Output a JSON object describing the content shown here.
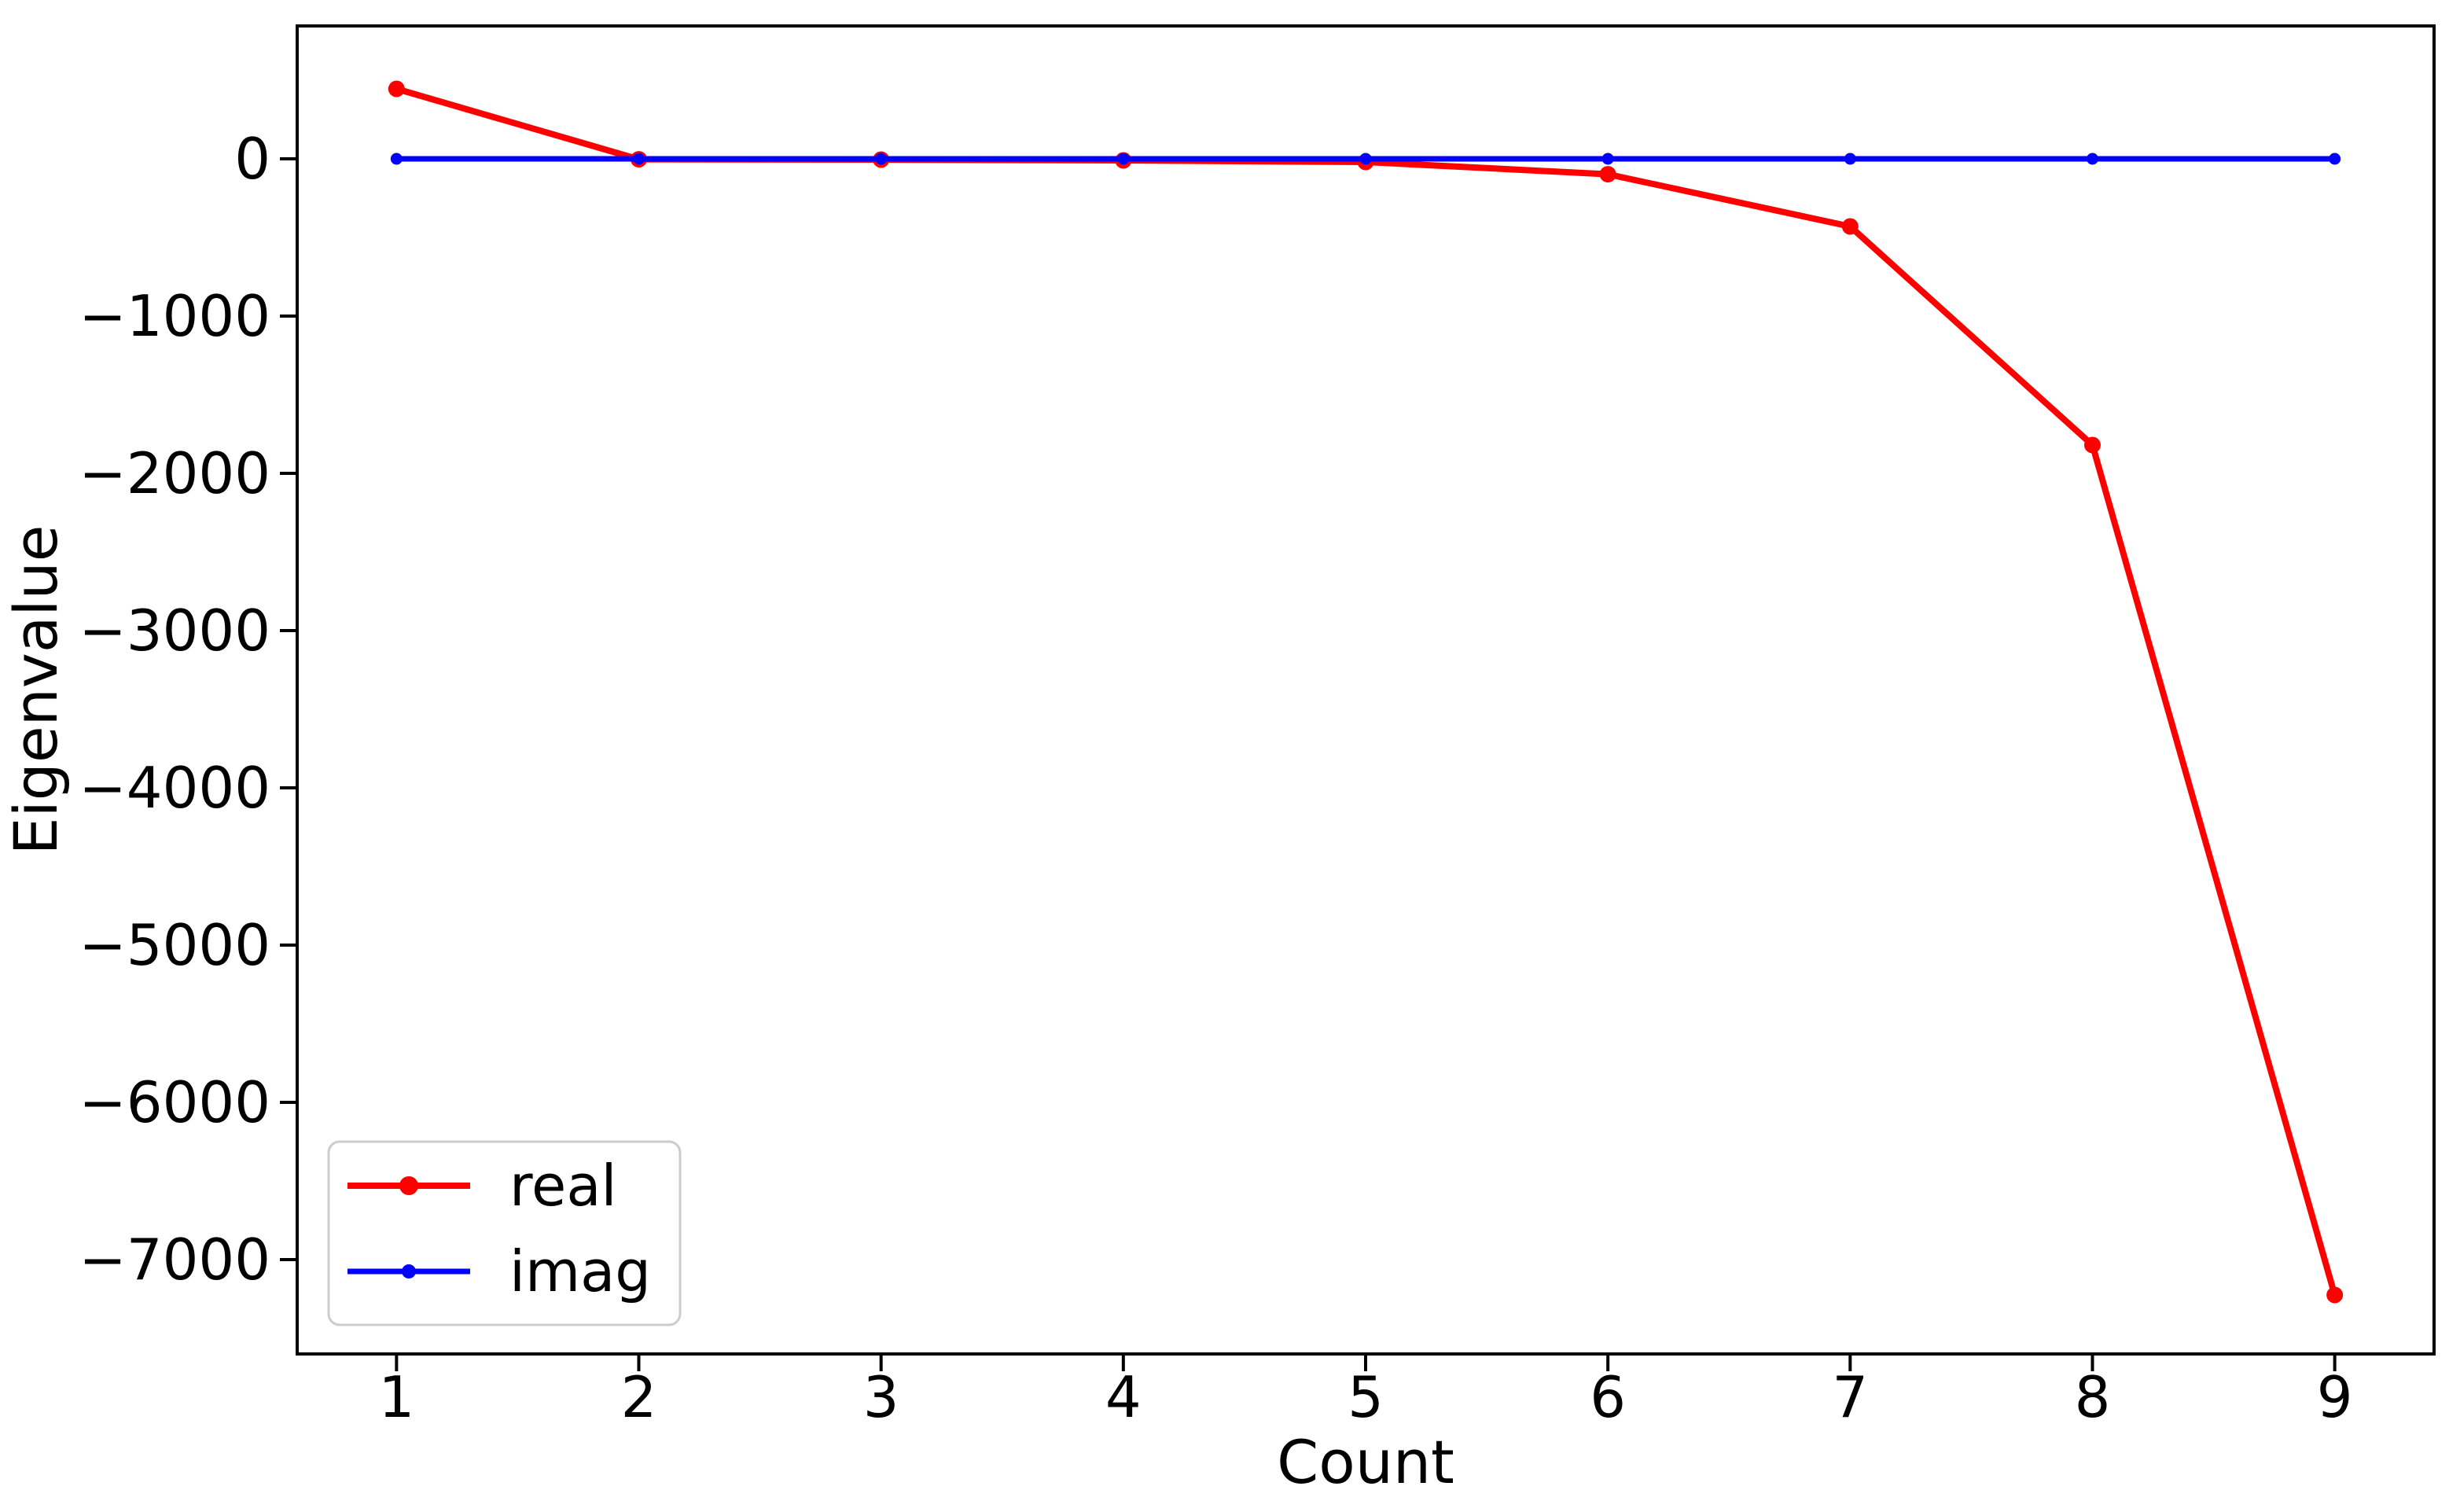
{
  "chart_data": {
    "type": "line",
    "title": "",
    "xlabel": "Count",
    "ylabel": "Eigenvalue",
    "x": [
      1,
      2,
      3,
      4,
      5,
      6,
      7,
      8,
      9
    ],
    "series": [
      {
        "name": "real",
        "color": "#ff0000",
        "line_width": 8,
        "marker_radius": 10.5,
        "values": [
          445,
          -3,
          -5,
          -10,
          -20,
          -98,
          -430,
          -1820,
          -7225
        ]
      },
      {
        "name": "imag",
        "color": "#0000ff",
        "line_width": 7,
        "marker_radius": 7.5,
        "values": [
          0,
          0,
          0,
          0,
          0,
          0,
          0,
          0,
          0
        ]
      }
    ],
    "xticks": [
      1,
      2,
      3,
      4,
      5,
      6,
      7,
      8,
      9
    ],
    "xtick_labels": [
      "1",
      "2",
      "3",
      "4",
      "5",
      "6",
      "7",
      "8",
      "9"
    ],
    "yticks": [
      0,
      -1000,
      -2000,
      -3000,
      -4000,
      -5000,
      -6000,
      -7000
    ],
    "ytick_labels": [
      "0",
      "−1000",
      "−2000",
      "−3000",
      "−4000",
      "−5000",
      "−6000",
      "−7000"
    ],
    "xlim": [
      0.59,
      9.41
    ],
    "ylim": [
      -7600,
      845
    ],
    "grid": false,
    "legend": {
      "position": "lower-left",
      "entries": [
        "real",
        "imag"
      ],
      "border_color": "#cccccc",
      "background": "#ffffff"
    }
  },
  "colors": {
    "axis": "#000000",
    "background": "#ffffff",
    "text": "#000000"
  }
}
